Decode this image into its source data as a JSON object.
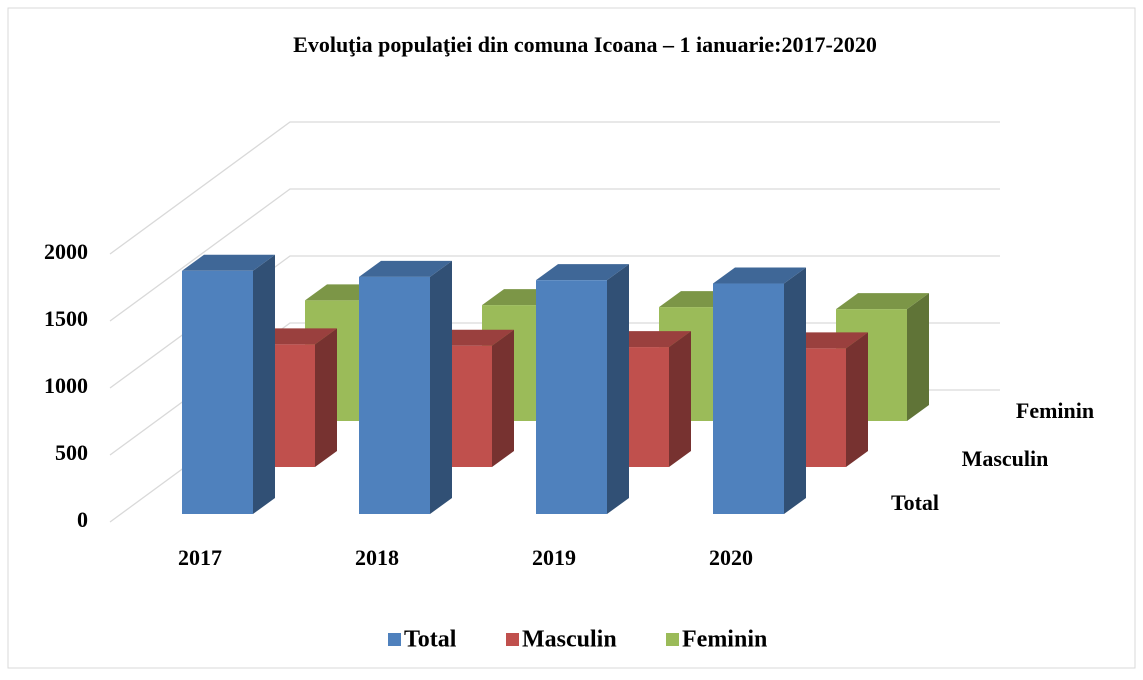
{
  "chart_data": {
    "type": "bar3d",
    "title": "Evoluţia populaţiei din comuna Icoana – 1 ianuarie:2017-2020",
    "categories": [
      "2017",
      "2018",
      "2019",
      "2020"
    ],
    "series": [
      {
        "name": "Total",
        "color": "#4f81bd",
        "values": [
          1815,
          1770,
          1745,
          1720
        ]
      },
      {
        "name": "Masculin",
        "color": "#c0504d",
        "values": [
          915,
          905,
          895,
          885
        ]
      },
      {
        "name": "Feminin",
        "color": "#9bbb59",
        "values": [
          900,
          865,
          850,
          835
        ]
      }
    ],
    "ylim": [
      0,
      2000
    ],
    "yticks": [
      0,
      500,
      1000,
      1500,
      2000
    ],
    "grid": true,
    "legend": "bottom"
  }
}
